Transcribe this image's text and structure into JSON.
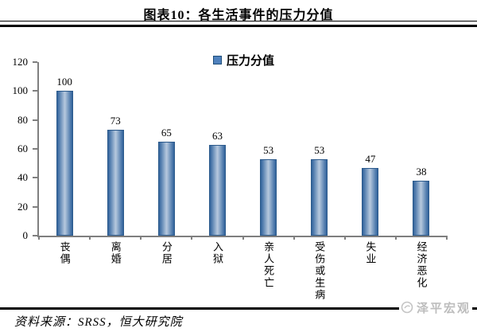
{
  "header": {
    "title": "图表10：各生活事件的压力分值"
  },
  "legend": {
    "label": "压力分值",
    "marker_color": "#4f81bd"
  },
  "chart_data": {
    "type": "bar",
    "title": "各生活事件的压力分值",
    "series_name": "压力分值",
    "categories": [
      "丧偶",
      "离婚",
      "分居",
      "入狱",
      "亲人死亡",
      "受伤或生病",
      "失业",
      "经济恶化"
    ],
    "values": [
      100,
      73,
      65,
      63,
      53,
      53,
      47,
      38
    ],
    "data_labels": [
      "100",
      "73",
      "65",
      "63",
      "53",
      "53",
      "47",
      "38"
    ],
    "xlabel": "",
    "ylabel": "",
    "ylim": [
      0,
      120
    ],
    "yticks": [
      0,
      20,
      40,
      60,
      80,
      100,
      120
    ],
    "grid": false,
    "legend_position": "top",
    "bar_edge_color": "#31639b",
    "bar_center_color": "#b7c9de",
    "axis_color": "#7f7f7f"
  },
  "footer": {
    "source": "资料来源：SRSS，恒大研究院",
    "watermark": "泽平宏观"
  }
}
